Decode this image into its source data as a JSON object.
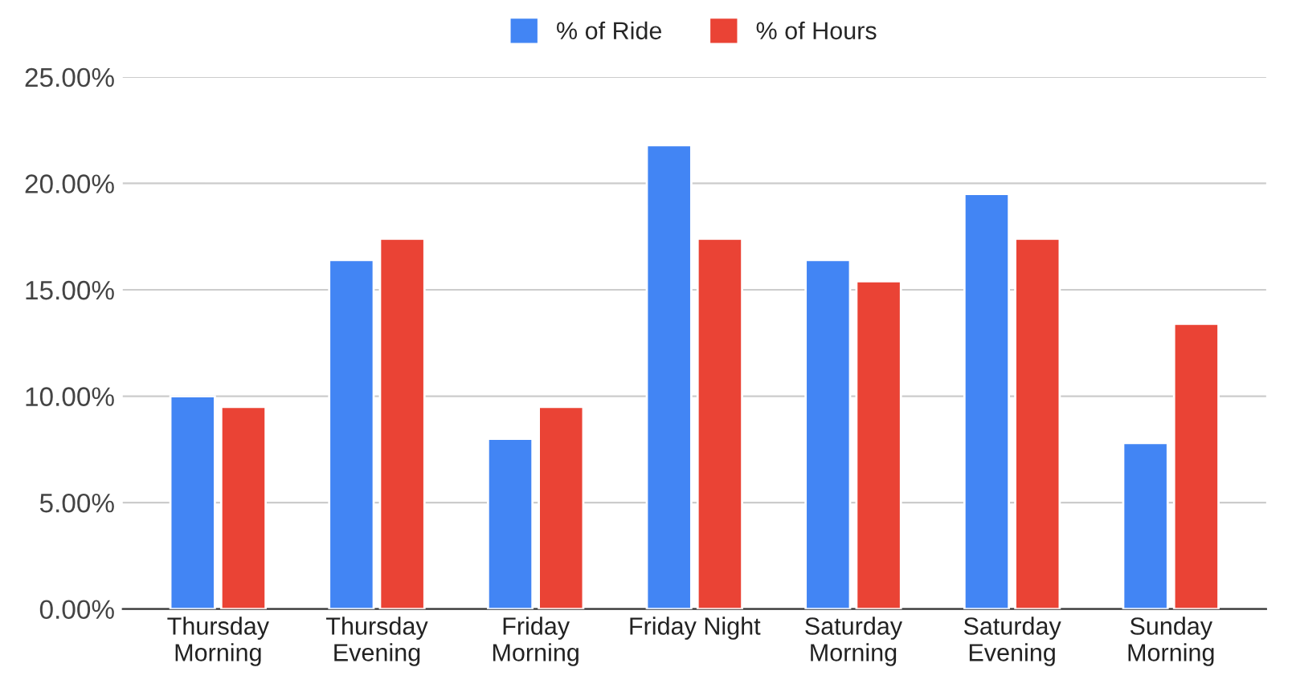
{
  "chart_data": {
    "type": "bar",
    "categories": [
      "Thursday\nMorning",
      "Thursday\nEvening",
      "Friday\nMorning",
      "Friday Night",
      "Saturday\nMorning",
      "Saturday\nEvening",
      "Sunday\nMorning"
    ],
    "series": [
      {
        "name": "% of Ride",
        "color": "#4285f4",
        "values": [
          10.0,
          16.4,
          8.0,
          21.8,
          16.4,
          19.5,
          7.8
        ]
      },
      {
        "name": "% of Hours",
        "color": "#ea4335",
        "values": [
          9.5,
          17.4,
          9.5,
          17.4,
          15.4,
          17.4,
          13.4
        ]
      }
    ],
    "ylim": [
      0,
      25
    ],
    "yticks": [
      {
        "value": 0,
        "label": "0.00%"
      },
      {
        "value": 5,
        "label": "5.00%"
      },
      {
        "value": 10,
        "label": "10.00%"
      },
      {
        "value": 15,
        "label": "15.00%"
      },
      {
        "value": 20,
        "label": "20.00%"
      },
      {
        "value": 25,
        "label": "25.00%"
      }
    ],
    "grid": "y",
    "legend": "top"
  }
}
